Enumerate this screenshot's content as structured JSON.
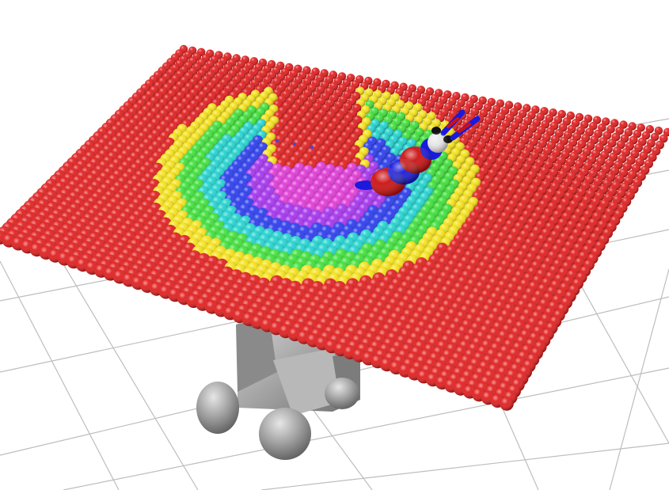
{
  "scene": {
    "background_color": "#ffffff",
    "floor_grid_color": "#bdbdbd",
    "sheet_base_color": "#e21e1e",
    "robot_gray_color": "#a8a8a8",
    "probe_colors": {
      "body_red": "#cc1111",
      "band_blue": "#1a1adc",
      "tip_white": "#e8e8e8",
      "tip_black": "#111111"
    },
    "heatmap_palette": [
      "#e21e1e",
      "#f5e21a",
      "#3fe03a",
      "#22d4d0",
      "#2a3cf0",
      "#a633f0",
      "#e23ad8"
    ],
    "sheet_rows": 44,
    "sheet_cols": 56
  }
}
